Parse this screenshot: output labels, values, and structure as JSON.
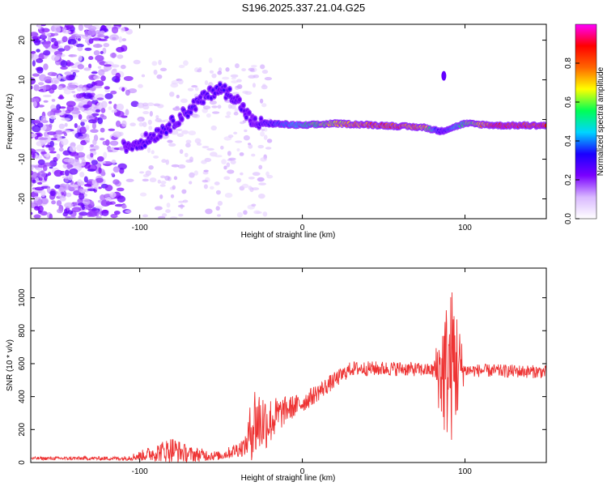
{
  "title": "S196.2025.337.21.04.G25",
  "chart_data": [
    {
      "type": "heatmap",
      "name": "spectrogram",
      "xlabel": "Height of straight line (km)",
      "ylabel": "Frequency (Hz)",
      "xlim": [
        -167,
        150
      ],
      "ylim": [
        -25,
        24
      ],
      "xticks": [
        -100,
        0,
        100
      ],
      "xtick_labels": [
        "-100",
        "0",
        "100"
      ],
      "yticks": [
        -20,
        -10,
        0,
        10,
        20
      ],
      "ytick_labels": [
        "-20",
        "-10",
        "0",
        "10",
        "20"
      ],
      "colorbar": {
        "label": "Normalized spectral amplitude",
        "range": [
          0,
          1
        ],
        "ticks": [
          0,
          0.2,
          0.4,
          0.6,
          0.8
        ],
        "tick_labels": [
          "0.0",
          "0.2",
          "0.4",
          "0.6",
          "0.8"
        ],
        "colormap": [
          "#ffffff",
          "#d9b8ff",
          "#7a00ff",
          "#1a00ff",
          "#00d5ff",
          "#00ff55",
          "#ffff00",
          "#ff6600",
          "#ff0000",
          "#ff00ff"
        ]
      },
      "ridge": [
        {
          "x": -110,
          "f": -7,
          "a": 0.25
        },
        {
          "x": -95,
          "f": -5,
          "a": 0.3
        },
        {
          "x": -80,
          "f": -1,
          "a": 0.3
        },
        {
          "x": -65,
          "f": 4,
          "a": 0.3
        },
        {
          "x": -52,
          "f": 8,
          "a": 0.3
        },
        {
          "x": -42,
          "f": 6,
          "a": 0.3
        },
        {
          "x": -30,
          "f": -1,
          "a": 0.25
        },
        {
          "x": -20,
          "f": -1,
          "a": 0.35
        },
        {
          "x": 0,
          "f": -1.5,
          "a": 0.55
        },
        {
          "x": 20,
          "f": -1,
          "a": 0.75
        },
        {
          "x": 50,
          "f": -1.5,
          "a": 0.9
        },
        {
          "x": 75,
          "f": -2,
          "a": 0.8
        },
        {
          "x": 85,
          "f": -3,
          "a": 0.3
        },
        {
          "x": 100,
          "f": -1,
          "a": 0.6
        },
        {
          "x": 120,
          "f": -1.5,
          "a": 0.95
        },
        {
          "x": 150,
          "f": -1.5,
          "a": 0.95
        }
      ],
      "noise_region": {
        "x_from": -167,
        "x_to": -100,
        "f_from": -25,
        "f_to": 24
      }
    },
    {
      "type": "line",
      "name": "snr",
      "xlabel": "Height of straight line (km)",
      "ylabel": "SNR (10 * v/v)",
      "xlim": [
        -167,
        150
      ],
      "ylim": [
        0,
        1180
      ],
      "xticks": [
        -100,
        0,
        100
      ],
      "xtick_labels": [
        "-100",
        "0",
        "100"
      ],
      "yticks": [
        0,
        200,
        400,
        600,
        800,
        1000
      ],
      "ytick_labels": [
        "0",
        "200",
        "400",
        "600",
        "800",
        "1000"
      ],
      "series": [
        {
          "name": "SNR",
          "color": "#ee3333",
          "envelope": [
            {
              "x": -167,
              "base": 25,
              "amp": 10
            },
            {
              "x": -110,
              "base": 25,
              "amp": 12
            },
            {
              "x": -100,
              "base": 40,
              "amp": 30
            },
            {
              "x": -80,
              "base": 80,
              "amp": 80
            },
            {
              "x": -70,
              "base": 50,
              "amp": 50
            },
            {
              "x": -50,
              "base": 40,
              "amp": 25
            },
            {
              "x": -35,
              "base": 100,
              "amp": 60
            },
            {
              "x": -30,
              "base": 250,
              "amp": 250
            },
            {
              "x": -20,
              "base": 250,
              "amp": 150
            },
            {
              "x": -10,
              "base": 320,
              "amp": 80
            },
            {
              "x": 0,
              "base": 360,
              "amp": 60
            },
            {
              "x": 20,
              "base": 500,
              "amp": 50
            },
            {
              "x": 30,
              "base": 570,
              "amp": 45
            },
            {
              "x": 60,
              "base": 570,
              "amp": 45
            },
            {
              "x": 80,
              "base": 560,
              "amp": 40
            },
            {
              "x": 87,
              "base": 550,
              "amp": 400
            },
            {
              "x": 93,
              "base": 600,
              "amp": 500
            },
            {
              "x": 100,
              "base": 560,
              "amp": 40
            },
            {
              "x": 150,
              "base": 550,
              "amp": 40
            }
          ]
        }
      ]
    }
  ]
}
